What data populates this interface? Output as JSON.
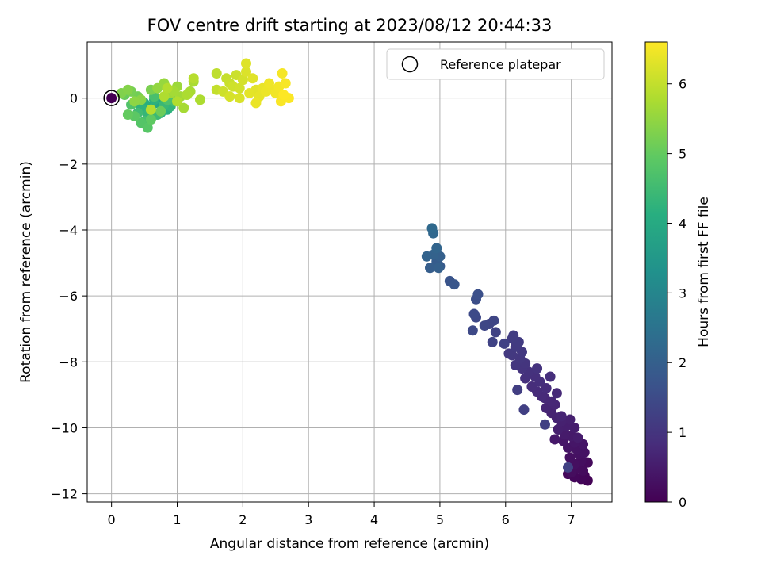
{
  "chart_data": {
    "type": "scatter",
    "title": "FOV centre drift starting at 2023/08/12 20:44:33",
    "xlabel": "Angular distance from reference (arcmin)",
    "ylabel": "Rotation from reference (arcmin)",
    "xlim": [
      -0.37,
      7.62
    ],
    "ylim": [
      -12.25,
      1.7
    ],
    "xticks": [
      0,
      1,
      2,
      3,
      4,
      5,
      6,
      7
    ],
    "yticks": [
      0,
      -2,
      -4,
      -6,
      -8,
      -10,
      -12
    ],
    "grid": true,
    "legend": {
      "position": "top-right",
      "entries": [
        {
          "label": "Reference platepar",
          "marker": "open-circle"
        }
      ]
    },
    "colorbar": {
      "label": "Hours from first FF file",
      "range": [
        0,
        6.6
      ],
      "ticks": [
        0,
        1,
        2,
        3,
        4,
        5,
        6
      ],
      "colormap": "viridis"
    },
    "reference_point": {
      "x": 0,
      "y": 0,
      "hours": 0
    },
    "points": [
      {
        "x": 7.25,
        "y": -11.6,
        "h": 0.05
      },
      {
        "x": 7.2,
        "y": -11.45,
        "h": 0.08
      },
      {
        "x": 7.15,
        "y": -11.55,
        "h": 0.1
      },
      {
        "x": 7.05,
        "y": -11.5,
        "h": 0.12
      },
      {
        "x": 6.95,
        "y": -11.4,
        "h": 0.14
      },
      {
        "x": 7.25,
        "y": -11.05,
        "h": 0.16
      },
      {
        "x": 7.18,
        "y": -11.3,
        "h": 0.18
      },
      {
        "x": 7.1,
        "y": -11.25,
        "h": 0.2
      },
      {
        "x": 7.0,
        "y": -11.35,
        "h": 0.22
      },
      {
        "x": 7.15,
        "y": -11.0,
        "h": 0.24
      },
      {
        "x": 7.05,
        "y": -11.1,
        "h": 0.26
      },
      {
        "x": 6.98,
        "y": -10.9,
        "h": 0.28
      },
      {
        "x": 7.12,
        "y": -10.8,
        "h": 0.3
      },
      {
        "x": 7.2,
        "y": -10.75,
        "h": 0.32
      },
      {
        "x": 7.08,
        "y": -10.65,
        "h": 0.34
      },
      {
        "x": 6.95,
        "y": -10.6,
        "h": 0.36
      },
      {
        "x": 7.18,
        "y": -10.5,
        "h": 0.38
      },
      {
        "x": 7.05,
        "y": -10.45,
        "h": 0.4
      },
      {
        "x": 6.88,
        "y": -10.4,
        "h": 0.42
      },
      {
        "x": 6.75,
        "y": -10.35,
        "h": 0.44
      },
      {
        "x": 7.0,
        "y": -10.25,
        "h": 0.46
      },
      {
        "x": 6.9,
        "y": -10.2,
        "h": 0.48
      },
      {
        "x": 7.1,
        "y": -10.3,
        "h": 0.5
      },
      {
        "x": 7.05,
        "y": -10.0,
        "h": 0.52
      },
      {
        "x": 6.92,
        "y": -9.95,
        "h": 0.54
      },
      {
        "x": 6.8,
        "y": -10.05,
        "h": 0.56
      },
      {
        "x": 6.98,
        "y": -9.75,
        "h": 0.58
      },
      {
        "x": 6.85,
        "y": -9.8,
        "h": 0.6
      },
      {
        "x": 6.78,
        "y": -9.7,
        "h": 0.62
      },
      {
        "x": 6.7,
        "y": -9.55,
        "h": 0.64
      },
      {
        "x": 6.85,
        "y": -9.65,
        "h": 0.66
      },
      {
        "x": 6.62,
        "y": -9.4,
        "h": 0.68
      },
      {
        "x": 6.75,
        "y": -9.3,
        "h": 0.7
      },
      {
        "x": 6.7,
        "y": -9.2,
        "h": 0.72
      },
      {
        "x": 6.6,
        "y": -9.1,
        "h": 0.74
      },
      {
        "x": 6.78,
        "y": -8.95,
        "h": 0.76
      },
      {
        "x": 6.55,
        "y": -9.05,
        "h": 0.78
      },
      {
        "x": 6.48,
        "y": -8.9,
        "h": 0.8
      },
      {
        "x": 6.62,
        "y": -8.8,
        "h": 0.82
      },
      {
        "x": 6.4,
        "y": -8.75,
        "h": 0.84
      },
      {
        "x": 6.52,
        "y": -8.6,
        "h": 0.86
      },
      {
        "x": 6.68,
        "y": -8.45,
        "h": 0.88
      },
      {
        "x": 6.45,
        "y": -8.45,
        "h": 0.9
      },
      {
        "x": 6.3,
        "y": -8.5,
        "h": 0.92
      },
      {
        "x": 6.35,
        "y": -8.3,
        "h": 0.94
      },
      {
        "x": 6.48,
        "y": -8.2,
        "h": 0.96
      },
      {
        "x": 6.25,
        "y": -8.2,
        "h": 0.98
      },
      {
        "x": 6.3,
        "y": -8.05,
        "h": 1.0
      },
      {
        "x": 6.15,
        "y": -8.1,
        "h": 1.02
      },
      {
        "x": 6.22,
        "y": -7.9,
        "h": 1.04
      },
      {
        "x": 6.1,
        "y": -7.8,
        "h": 1.06
      },
      {
        "x": 6.25,
        "y": -7.7,
        "h": 1.08
      },
      {
        "x": 6.05,
        "y": -7.75,
        "h": 1.1
      },
      {
        "x": 6.15,
        "y": -7.55,
        "h": 1.12
      },
      {
        "x": 6.2,
        "y": -7.4,
        "h": 1.14
      },
      {
        "x": 6.1,
        "y": -7.3,
        "h": 1.16
      },
      {
        "x": 6.12,
        "y": -7.2,
        "h": 1.18
      },
      {
        "x": 6.18,
        "y": -8.85,
        "h": 1.2
      },
      {
        "x": 6.28,
        "y": -9.45,
        "h": 1.22
      },
      {
        "x": 6.6,
        "y": -9.9,
        "h": 1.24
      },
      {
        "x": 6.95,
        "y": -11.2,
        "h": 1.26
      },
      {
        "x": 5.98,
        "y": -7.45,
        "h": 1.28
      },
      {
        "x": 5.85,
        "y": -7.1,
        "h": 1.3
      },
      {
        "x": 5.8,
        "y": -7.4,
        "h": 1.32
      },
      {
        "x": 5.75,
        "y": -6.85,
        "h": 1.34
      },
      {
        "x": 5.82,
        "y": -6.75,
        "h": 1.36
      },
      {
        "x": 5.68,
        "y": -6.9,
        "h": 1.38
      },
      {
        "x": 5.55,
        "y": -6.65,
        "h": 1.42
      },
      {
        "x": 5.5,
        "y": -7.05,
        "h": 1.45
      },
      {
        "x": 5.52,
        "y": -6.55,
        "h": 1.48
      },
      {
        "x": 5.55,
        "y": -6.1,
        "h": 1.55
      },
      {
        "x": 5.58,
        "y": -5.95,
        "h": 1.6
      },
      {
        "x": 5.15,
        "y": -5.55,
        "h": 1.7
      },
      {
        "x": 5.22,
        "y": -5.65,
        "h": 1.75
      },
      {
        "x": 5.0,
        "y": -5.1,
        "h": 1.85
      },
      {
        "x": 4.95,
        "y": -4.95,
        "h": 1.9
      },
      {
        "x": 4.85,
        "y": -5.15,
        "h": 1.95
      },
      {
        "x": 5.0,
        "y": -4.8,
        "h": 2.0
      },
      {
        "x": 4.9,
        "y": -4.75,
        "h": 2.05
      },
      {
        "x": 4.8,
        "y": -4.8,
        "h": 2.1
      },
      {
        "x": 4.95,
        "y": -4.55,
        "h": 2.15
      },
      {
        "x": 4.9,
        "y": -4.1,
        "h": 2.2
      },
      {
        "x": 4.88,
        "y": -3.95,
        "h": 2.25
      },
      {
        "x": 4.98,
        "y": -5.15,
        "h": 2.0
      },
      {
        "x": 0.55,
        "y": -0.25,
        "h": 3.8
      },
      {
        "x": 0.7,
        "y": -0.15,
        "h": 3.9
      },
      {
        "x": 0.6,
        "y": -0.3,
        "h": 4.0
      },
      {
        "x": 0.75,
        "y": -0.45,
        "h": 4.05
      },
      {
        "x": 0.5,
        "y": -0.15,
        "h": 4.1
      },
      {
        "x": 0.85,
        "y": -0.35,
        "h": 4.15
      },
      {
        "x": 0.65,
        "y": -0.05,
        "h": 4.2
      },
      {
        "x": 0.45,
        "y": -0.3,
        "h": 4.25
      },
      {
        "x": 0.9,
        "y": -0.25,
        "h": 4.3
      },
      {
        "x": 0.55,
        "y": -0.5,
        "h": 4.35
      },
      {
        "x": 0.8,
        "y": -0.2,
        "h": 4.4
      },
      {
        "x": 0.7,
        "y": -0.5,
        "h": 4.45
      },
      {
        "x": 0.4,
        "y": -0.45,
        "h": 4.5
      },
      {
        "x": 0.95,
        "y": -0.1,
        "h": 4.55
      },
      {
        "x": 0.5,
        "y": -0.7,
        "h": 4.6
      },
      {
        "x": 0.65,
        "y": 0.05,
        "h": 4.65
      },
      {
        "x": 0.85,
        "y": -0.05,
        "h": 4.7
      },
      {
        "x": 0.3,
        "y": -0.2,
        "h": 4.75
      },
      {
        "x": 0.45,
        "y": -0.75,
        "h": 4.8
      },
      {
        "x": 0.55,
        "y": -0.9,
        "h": 4.85
      },
      {
        "x": 0.35,
        "y": -0.55,
        "h": 4.9
      },
      {
        "x": 0.6,
        "y": -0.65,
        "h": 4.95
      },
      {
        "x": 0.25,
        "y": -0.5,
        "h": 5.0
      },
      {
        "x": 0.2,
        "y": 0.1,
        "h": 5.05
      },
      {
        "x": 0.75,
        "y": -0.4,
        "h": 5.1
      },
      {
        "x": 0.4,
        "y": 0.05,
        "h": 5.15
      },
      {
        "x": 0.3,
        "y": 0.2,
        "h": 5.2
      },
      {
        "x": 0.6,
        "y": 0.25,
        "h": 5.25
      },
      {
        "x": 0.15,
        "y": 0.15,
        "h": 5.3
      },
      {
        "x": 0.25,
        "y": 0.25,
        "h": 5.35
      },
      {
        "x": 0.45,
        "y": -0.05,
        "h": 5.4
      },
      {
        "x": 0.35,
        "y": -0.1,
        "h": 5.45
      },
      {
        "x": 0.7,
        "y": 0.3,
        "h": 5.5
      },
      {
        "x": 0.8,
        "y": 0.45,
        "h": 5.55
      },
      {
        "x": 1.0,
        "y": 0.35,
        "h": 5.6
      },
      {
        "x": 0.9,
        "y": 0.15,
        "h": 5.62
      },
      {
        "x": 1.05,
        "y": 0.05,
        "h": 5.65
      },
      {
        "x": 0.95,
        "y": 0.2,
        "h": 5.68
      },
      {
        "x": 1.1,
        "y": -0.3,
        "h": 5.7
      },
      {
        "x": 1.2,
        "y": 0.2,
        "h": 5.72
      },
      {
        "x": 1.25,
        "y": 0.5,
        "h": 5.74
      },
      {
        "x": 1.15,
        "y": 0.1,
        "h": 5.76
      },
      {
        "x": 1.35,
        "y": -0.05,
        "h": 5.78
      },
      {
        "x": 0.8,
        "y": 0.05,
        "h": 5.8
      },
      {
        "x": 1.0,
        "y": -0.1,
        "h": 5.82
      },
      {
        "x": 0.85,
        "y": 0.3,
        "h": 5.84
      },
      {
        "x": 0.6,
        "y": -0.35,
        "h": 5.86
      },
      {
        "x": 1.25,
        "y": 0.6,
        "h": 5.88
      },
      {
        "x": 1.6,
        "y": 0.75,
        "h": 5.95
      },
      {
        "x": 1.6,
        "y": 0.25,
        "h": 6.0
      },
      {
        "x": 1.75,
        "y": 0.6,
        "h": 6.02
      },
      {
        "x": 1.8,
        "y": 0.45,
        "h": 6.05
      },
      {
        "x": 1.9,
        "y": 0.7,
        "h": 6.08
      },
      {
        "x": 1.7,
        "y": 0.2,
        "h": 6.1
      },
      {
        "x": 1.85,
        "y": 0.35,
        "h": 6.12
      },
      {
        "x": 1.95,
        "y": 0.3,
        "h": 6.15
      },
      {
        "x": 2.0,
        "y": 0.55,
        "h": 6.18
      },
      {
        "x": 1.8,
        "y": 0.05,
        "h": 6.2
      },
      {
        "x": 1.95,
        "y": 0.0,
        "h": 6.22
      },
      {
        "x": 2.05,
        "y": 0.8,
        "h": 6.25
      },
      {
        "x": 2.05,
        "y": 1.05,
        "h": 6.28
      },
      {
        "x": 2.15,
        "y": 0.6,
        "h": 6.3
      },
      {
        "x": 2.2,
        "y": 0.25,
        "h": 6.32
      },
      {
        "x": 2.1,
        "y": 0.15,
        "h": 6.34
      },
      {
        "x": 2.25,
        "y": 0.05,
        "h": 6.36
      },
      {
        "x": 2.3,
        "y": 0.3,
        "h": 6.38
      },
      {
        "x": 2.2,
        "y": -0.15,
        "h": 6.4
      },
      {
        "x": 2.35,
        "y": 0.2,
        "h": 6.42
      },
      {
        "x": 2.45,
        "y": 0.25,
        "h": 6.44
      },
      {
        "x": 2.4,
        "y": 0.45,
        "h": 6.46
      },
      {
        "x": 2.5,
        "y": 0.15,
        "h": 6.48
      },
      {
        "x": 2.55,
        "y": 0.35,
        "h": 6.5
      },
      {
        "x": 2.6,
        "y": 0.75,
        "h": 6.52
      },
      {
        "x": 2.65,
        "y": 0.45,
        "h": 6.54
      },
      {
        "x": 2.58,
        "y": -0.1,
        "h": 6.56
      },
      {
        "x": 2.7,
        "y": 0.0,
        "h": 6.58
      },
      {
        "x": 2.62,
        "y": 0.1,
        "h": 6.6
      }
    ]
  }
}
